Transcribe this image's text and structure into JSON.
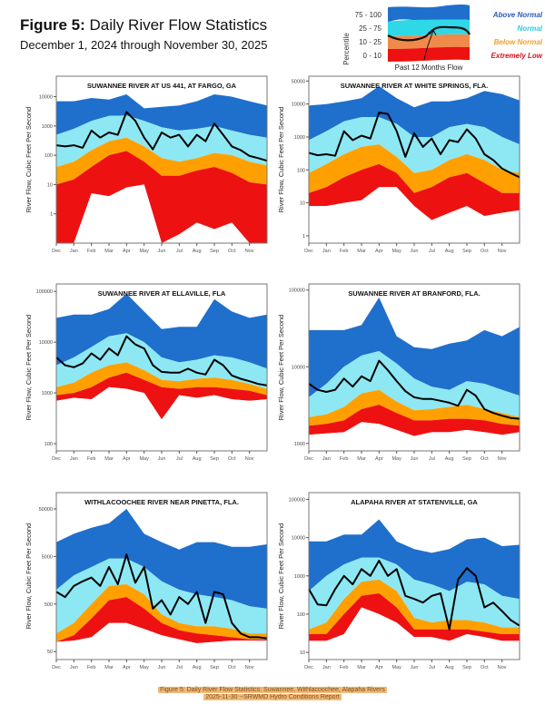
{
  "header": {
    "figure_label": "Figure 5:",
    "title": "Daily River Flow Statistics",
    "subtitle": "December 1, 2024 through November 30, 2025"
  },
  "legend": {
    "axis_label": "Percentile",
    "flow_label": "Past 12 Months Flow",
    "items": [
      {
        "range": "75 - 100",
        "label": "Above Normal",
        "band_color": "#1f6fcc",
        "text_color": "#2a5bb8"
      },
      {
        "range": "25 - 75",
        "label": "Normal",
        "band_color": "#8de8f4",
        "text_color": "#33c9d9"
      },
      {
        "range": "10 - 25",
        "label": "Below Normal",
        "band_color": "#f08a4a",
        "text_color": "#f0a030"
      },
      {
        "range": "0 - 10",
        "label": "Extremely Low",
        "band_color": "#ee1111",
        "text_color": "#d81020"
      }
    ]
  },
  "caption": {
    "line1": "Figure 5: Daily River Flow Statistics: Suwannee, Withlacoochee, Alapaha Rivers",
    "line2": "2025-11-30 --SRWMD Hydro Conditions Report"
  },
  "colors": {
    "above_normal": "#1f6fcc",
    "normal": "#8de8f4",
    "below_normal": "#ffa000",
    "extremely_low": "#ee1111",
    "flow": "#000000"
  },
  "chart_data": [
    {
      "type": "area",
      "title": "SUWANNEE RIVER AT US 441, AT FARGO, GA",
      "ylabel": "River Flow, Cubic Feet Per Second",
      "yscale": "log",
      "ylim": [
        0.1,
        50000
      ],
      "yticks": [
        "1",
        "10",
        "100",
        "1000",
        "10000"
      ],
      "ytick_values": [
        1,
        10,
        100,
        1000,
        10000
      ],
      "xticks": [
        "Dec",
        "Jan",
        "Feb",
        "Mar",
        "Apr",
        "May",
        "Jun",
        "Jul",
        "Aug",
        "Sep",
        "Oct",
        "Nov"
      ],
      "bands": {
        "p100": [
          7000,
          7000,
          9000,
          8000,
          12000,
          4000,
          4500,
          5000,
          7000,
          12000,
          10000,
          7000,
          5000
        ],
        "p75": [
          500,
          800,
          1500,
          2200,
          2300,
          1500,
          900,
          700,
          800,
          1000,
          700,
          500,
          400
        ],
        "p25": [
          40,
          60,
          150,
          300,
          400,
          200,
          80,
          60,
          80,
          120,
          100,
          60,
          45
        ],
        "p10": [
          10,
          15,
          40,
          100,
          140,
          60,
          20,
          20,
          30,
          40,
          25,
          12,
          10
        ],
        "p0": [
          0.1,
          0.1,
          5,
          4,
          8,
          10,
          0.1,
          0.2,
          0.5,
          0.3,
          0.5,
          0.1,
          0.1
        ]
      },
      "flow": [
        220,
        200,
        220,
        180,
        700,
        400,
        600,
        500,
        3000,
        1500,
        400,
        160,
        600,
        400,
        500,
        200,
        500,
        300,
        1200,
        500,
        200,
        150,
        95,
        80,
        65
      ]
    },
    {
      "type": "area",
      "title": "SUWANNEE RIVER AT WHITE SPRINGS, FLA.",
      "ylabel": "River Flow, Cubic Feet Per Second",
      "yscale": "log",
      "ylim": [
        0.6,
        70000
      ],
      "yticks": [
        "1",
        "10",
        "100",
        "1000",
        "10000",
        "50000"
      ],
      "ytick_values": [
        1,
        10,
        100,
        1000,
        10000,
        50000
      ],
      "xticks": [
        "Dec",
        "Jan",
        "Feb",
        "Mar",
        "Apr",
        "May",
        "Jun",
        "Jul",
        "Aug",
        "Sep",
        "Oct",
        "Nov"
      ],
      "bands": {
        "p100": [
          9000,
          10000,
          12000,
          15000,
          35000,
          15000,
          8000,
          12000,
          12000,
          15000,
          25000,
          20000,
          13000
        ],
        "p75": [
          800,
          1500,
          3000,
          4000,
          4000,
          2500,
          1000,
          1000,
          2000,
          2500,
          2000,
          1000,
          600
        ],
        "p25": [
          80,
          150,
          300,
          500,
          600,
          250,
          80,
          100,
          200,
          300,
          200,
          100,
          80
        ],
        "p10": [
          20,
          30,
          60,
          100,
          150,
          80,
          20,
          30,
          60,
          80,
          40,
          20,
          20
        ],
        "p0": [
          8,
          8,
          10,
          12,
          30,
          30,
          8,
          3,
          5,
          8,
          4,
          5,
          6
        ]
      },
      "flow": [
        330,
        280,
        300,
        270,
        1500,
        800,
        1100,
        900,
        5500,
        5000,
        1500,
        250,
        1300,
        500,
        900,
        300,
        800,
        700,
        1700,
        900,
        300,
        200,
        110,
        80,
        60
      ]
    },
    {
      "type": "area",
      "title": "SUWANNEE RIVER AT ELLAVILLE, FLA",
      "ylabel": "River Flow, Cubic Feet Per Second",
      "yscale": "log",
      "ylim": [
        72,
        140000
      ],
      "yticks": [
        "100",
        "1000",
        "10000",
        "100000"
      ],
      "ytick_values": [
        100,
        1000,
        10000,
        100000
      ],
      "xticks": [
        "Dec",
        "Jan",
        "Feb",
        "Mar",
        "Apr",
        "May",
        "Jun",
        "Jul",
        "Aug",
        "Sep",
        "Oct",
        "Nov"
      ],
      "bands": {
        "p100": [
          30000,
          35000,
          35000,
          45000,
          90000,
          40000,
          18000,
          20000,
          20000,
          70000,
          40000,
          30000,
          35000
        ],
        "p75": [
          3500,
          5000,
          8000,
          13000,
          15000,
          10000,
          5000,
          4000,
          4500,
          5500,
          5000,
          4000,
          3000
        ],
        "p25": [
          1300,
          1600,
          2500,
          3500,
          4000,
          2800,
          1800,
          1700,
          1900,
          2000,
          1800,
          1500,
          1200
        ],
        "p10": [
          900,
          1000,
          1300,
          2000,
          2500,
          1800,
          1300,
          1200,
          1300,
          1300,
          1200,
          1100,
          900
        ],
        "p0": [
          700,
          800,
          750,
          1300,
          1200,
          1000,
          300,
          900,
          800,
          900,
          750,
          700,
          750
        ]
      },
      "flow": [
        5000,
        3500,
        3200,
        3800,
        6000,
        4500,
        7500,
        5500,
        13000,
        9000,
        7500,
        3500,
        2600,
        2500,
        2500,
        3000,
        2500,
        2300,
        4500,
        3500,
        2200,
        1900,
        1700,
        1500,
        1400
      ]
    },
    {
      "type": "area",
      "title": "SUWANNEE RIVER AT BRANFORD, FLA.",
      "ylabel": "River Flow, Cubic Feet Per Second",
      "yscale": "log",
      "ylim": [
        800,
        120000
      ],
      "yticks": [
        "1000",
        "10000",
        "100000"
      ],
      "ytick_values": [
        1000,
        10000,
        100000
      ],
      "xticks": [
        "Dec",
        "Jan",
        "Feb",
        "Mar",
        "Apr",
        "May",
        "Jun",
        "Jul",
        "Aug",
        "Sep",
        "Oct",
        "Nov"
      ],
      "bands": {
        "p100": [
          30000,
          30000,
          30000,
          35000,
          80000,
          25000,
          18000,
          17000,
          20000,
          22000,
          30000,
          25000,
          33000
        ],
        "p75": [
          4000,
          6000,
          10000,
          14000,
          16000,
          11000,
          7000,
          5500,
          5000,
          6500,
          6000,
          5000,
          4200
        ],
        "p25": [
          2200,
          2400,
          3000,
          4500,
          5000,
          3500,
          2700,
          2800,
          3000,
          3200,
          2800,
          2500,
          2200
        ],
        "p10": [
          1700,
          1800,
          2000,
          2800,
          3200,
          2500,
          2000,
          2000,
          2100,
          2100,
          2000,
          1800,
          1700
        ],
        "p0": [
          1300,
          1350,
          1400,
          1900,
          1800,
          1500,
          1250,
          1400,
          1400,
          1500,
          1400,
          1300,
          1400
        ]
      },
      "flow": [
        6000,
        5000,
        4700,
        5000,
        7000,
        5500,
        7500,
        6500,
        12000,
        9000,
        6500,
        4800,
        4000,
        3800,
        3800,
        3600,
        3400,
        3100,
        5000,
        4200,
        2800,
        2500,
        2300,
        2150,
        2100
      ]
    },
    {
      "type": "area",
      "title": "WITHLACOOCHEE RIVER NEAR PINETTA, FLA.",
      "ylabel": "River Flow, Cubic Feet Per Second",
      "yscale": "log",
      "ylim": [
        34,
        110000
      ],
      "yticks": [
        "50",
        "500",
        "5000",
        "50000"
      ],
      "ytick_values": [
        50,
        500,
        5000,
        50000
      ],
      "xticks": [
        "Dec",
        "Jan",
        "Feb",
        "Mar",
        "Apr",
        "May",
        "Jun",
        "Jul",
        "Aug",
        "Sep",
        "Oct",
        "Nov"
      ],
      "bands": {
        "p100": [
          10000,
          15000,
          20000,
          25000,
          50000,
          15000,
          10000,
          7000,
          10000,
          10000,
          8000,
          8000,
          9000
        ],
        "p75": [
          1000,
          2000,
          3000,
          4500,
          4500,
          3000,
          1500,
          1000,
          800,
          700,
          600,
          450,
          400
        ],
        "p25": [
          120,
          200,
          500,
          1200,
          1300,
          800,
          300,
          200,
          170,
          170,
          150,
          120,
          120
        ],
        "p10": [
          80,
          110,
          250,
          600,
          700,
          400,
          200,
          140,
          120,
          110,
          100,
          90,
          90
        ],
        "p0": [
          80,
          85,
          100,
          200,
          200,
          150,
          110,
          90,
          75,
          80,
          85,
          85,
          85
        ]
      },
      "flow": [
        900,
        700,
        1200,
        1500,
        1800,
        1200,
        3000,
        1300,
        5500,
        1400,
        3000,
        400,
        600,
        300,
        700,
        500,
        900,
        200,
        900,
        800,
        200,
        120,
        100,
        100,
        95
      ]
    },
    {
      "type": "area",
      "title": "ALAPAHA RIVER AT STATENVILLE, GA",
      "ylabel": "River Flow, Cubic Feet Per Second",
      "yscale": "log",
      "ylim": [
        6.5,
        150000
      ],
      "yticks": [
        "10",
        "100",
        "1000",
        "10000",
        "100000"
      ],
      "ytick_values": [
        10,
        100,
        1000,
        10000,
        100000
      ],
      "xticks": [
        "Dec",
        "Jan",
        "Feb",
        "Mar",
        "Apr",
        "May",
        "Jun",
        "Jul",
        "Aug",
        "Sep",
        "Oct",
        "Nov"
      ],
      "bands": {
        "p100": [
          8000,
          8000,
          12000,
          12000,
          30000,
          8000,
          5000,
          4000,
          5000,
          9000,
          10000,
          6000,
          6500
        ],
        "p75": [
          400,
          1000,
          2000,
          3000,
          3000,
          2000,
          800,
          600,
          400,
          700,
          600,
          300,
          250
        ],
        "p25": [
          40,
          60,
          250,
          700,
          800,
          400,
          80,
          60,
          70,
          70,
          60,
          45,
          45
        ],
        "p10": [
          30,
          30,
          100,
          300,
          350,
          150,
          40,
          40,
          40,
          40,
          35,
          30,
          30
        ],
        "p0": [
          20,
          20,
          30,
          150,
          100,
          60,
          25,
          25,
          20,
          30,
          25,
          20,
          20
        ]
      },
      "flow": [
        450,
        180,
        170,
        450,
        1000,
        600,
        1500,
        1000,
        2500,
        1000,
        1500,
        300,
        250,
        200,
        300,
        350,
        40,
        800,
        1600,
        1000,
        150,
        200,
        120,
        70,
        50
      ]
    }
  ]
}
